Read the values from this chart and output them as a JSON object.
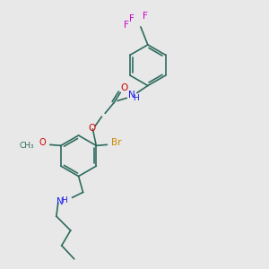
{
  "background_color": "#e8e8e8",
  "bond_color": "#2d6b5e",
  "atom_colors": {
    "O": "#cc0000",
    "N": "#1a1aee",
    "Br": "#cc8800",
    "F": "#cc00cc",
    "C": "#2d6b5e",
    "H": "#2d6b5e"
  },
  "figsize": [
    3.0,
    3.0
  ],
  "dpi": 100
}
